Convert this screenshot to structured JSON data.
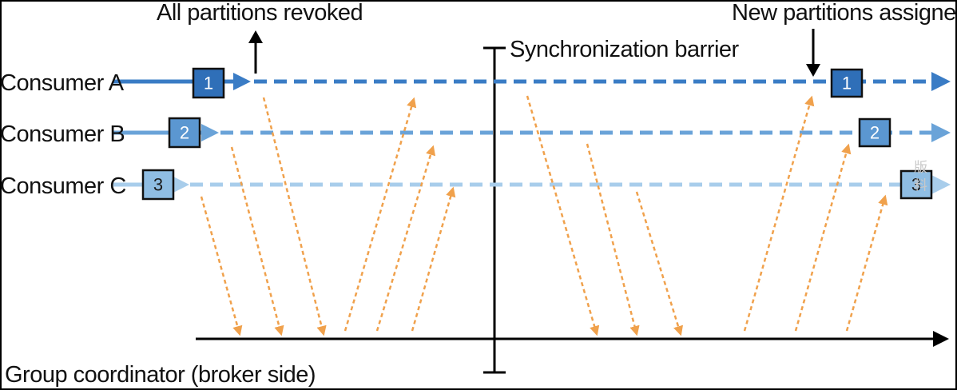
{
  "labels": {
    "all_revoked": "All partitions revoked",
    "new_assigned": "New partitions assigned",
    "barrier": "Synchronization barrier",
    "coordinator": "Group coordinator (broker side)"
  },
  "consumers": [
    {
      "name": "Consumer A",
      "partition": "1",
      "color": "#3a7cc5",
      "box_fill": "#2f6fb8",
      "num_color": "#ffffff"
    },
    {
      "name": "Consumer B",
      "partition": "2",
      "color": "#6aa3d8",
      "box_fill": "#5b97d1",
      "num_color": "#ffffff"
    },
    {
      "name": "Consumer C",
      "partition": "3",
      "color": "#a8cdeb",
      "box_fill": "#8fbde3",
      "num_color": "#1a1a1a"
    }
  ],
  "colors": {
    "message_arrow": "#f0a14c",
    "axis": "#000000",
    "border": "#000000"
  },
  "watermark": "版 料"
}
